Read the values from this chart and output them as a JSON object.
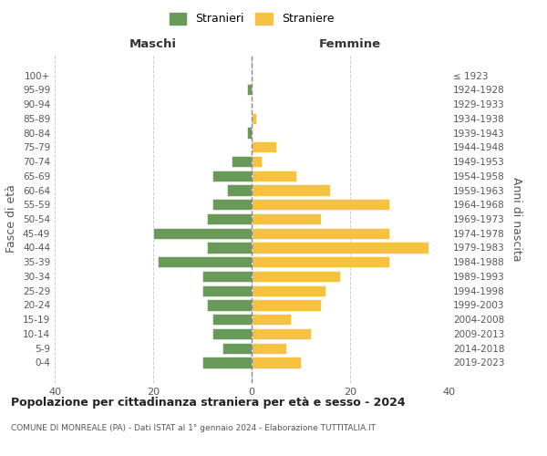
{
  "age_groups": [
    "0-4",
    "5-9",
    "10-14",
    "15-19",
    "20-24",
    "25-29",
    "30-34",
    "35-39",
    "40-44",
    "45-49",
    "50-54",
    "55-59",
    "60-64",
    "65-69",
    "70-74",
    "75-79",
    "80-84",
    "85-89",
    "90-94",
    "95-99",
    "100+"
  ],
  "birth_years": [
    "2019-2023",
    "2014-2018",
    "2009-2013",
    "2004-2008",
    "1999-2003",
    "1994-1998",
    "1989-1993",
    "1984-1988",
    "1979-1983",
    "1974-1978",
    "1969-1973",
    "1964-1968",
    "1959-1963",
    "1954-1958",
    "1949-1953",
    "1944-1948",
    "1939-1943",
    "1934-1938",
    "1929-1933",
    "1924-1928",
    "≤ 1923"
  ],
  "maschi": [
    10,
    6,
    8,
    8,
    9,
    10,
    10,
    19,
    9,
    20,
    9,
    8,
    5,
    8,
    4,
    0,
    1,
    0,
    0,
    1,
    0
  ],
  "femmine": [
    10,
    7,
    12,
    8,
    14,
    15,
    18,
    28,
    36,
    28,
    14,
    28,
    16,
    9,
    2,
    5,
    0,
    1,
    0,
    0,
    0
  ],
  "color_maschi": "#6a9a5a",
  "color_femmine": "#f5c242",
  "color_background": "#ffffff",
  "color_grid": "#cccccc",
  "title": "Popolazione per cittadinanza straniera per età e sesso - 2024",
  "subtitle": "COMUNE DI MONREALE (PA) - Dati ISTAT al 1° gennaio 2024 - Elaborazione TUTTITALIA.IT",
  "ylabel_left": "Fasce di età",
  "ylabel_right": "Anni di nascita",
  "xlabel_left": "Maschi",
  "xlabel_right": "Femmine",
  "xlim": 40,
  "legend_maschi": "Stranieri",
  "legend_femmine": "Straniere"
}
